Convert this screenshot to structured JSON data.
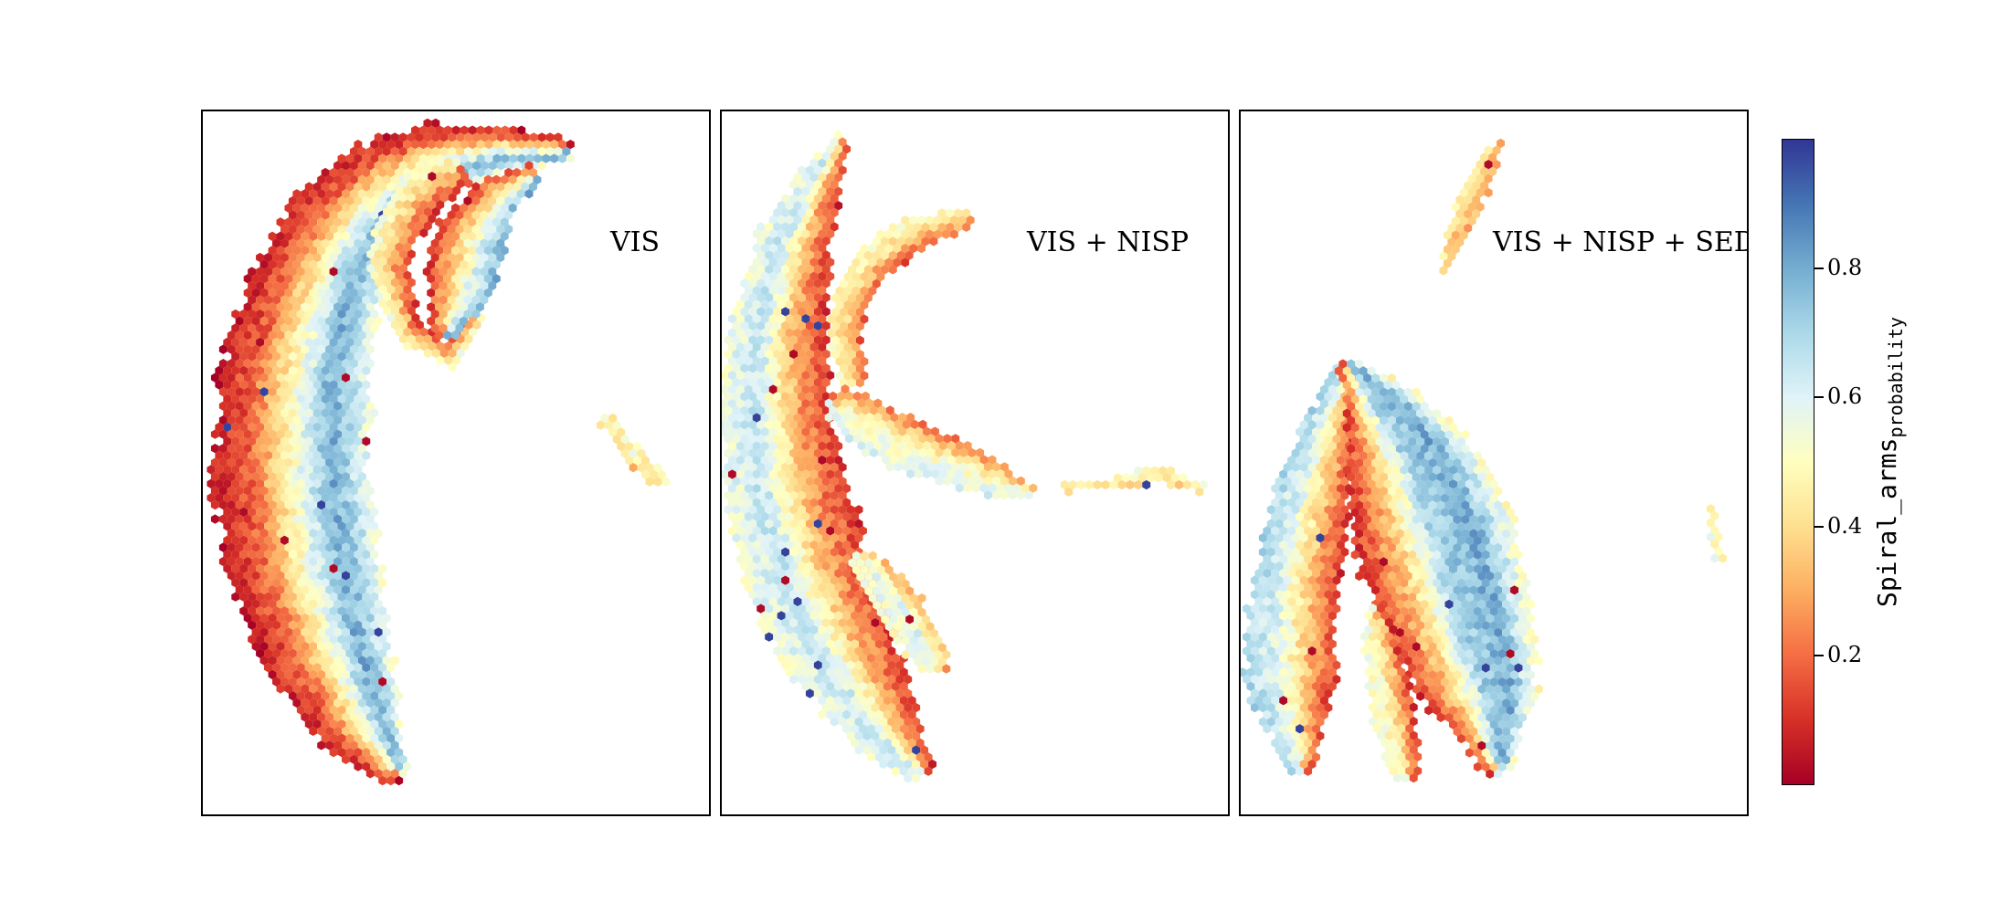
{
  "chart_data": [
    {
      "type": "hexbin",
      "panel_label": "VIS",
      "regions": [
        {
          "name": "main-arc",
          "gradient_outer_to_inner": [
            0.55,
            0.8,
            0.5,
            0.2,
            0.05
          ]
        },
        {
          "name": "upper-hook",
          "gradient_outer_to_inner": [
            0.8,
            0.6,
            0.35,
            0.1
          ]
        },
        {
          "name": "island",
          "mean_value": 0.4
        }
      ]
    },
    {
      "type": "hexbin",
      "panel_label": "VIS + NISP",
      "regions": [
        {
          "name": "left-arc",
          "gradient_outer_to_inner": [
            0.1,
            0.3,
            0.65,
            0.55
          ]
        },
        {
          "name": "upper-branch",
          "gradient_outer_to_inner": [
            0.15,
            0.4,
            0.5
          ]
        },
        {
          "name": "middle-branch",
          "gradient_outer_to_inner": [
            0.2,
            0.5,
            0.6
          ]
        },
        {
          "name": "right-streak",
          "mean_value": 0.45
        }
      ]
    },
    {
      "type": "hexbin",
      "panel_label": "VIS + NISP + SED",
      "regions": [
        {
          "name": "left-leg",
          "gradient_outer_to_inner": [
            0.1,
            0.35,
            0.6,
            0.7
          ]
        },
        {
          "name": "right-leg",
          "gradient_outer_to_inner": [
            0.1,
            0.35,
            0.7,
            0.8,
            0.5
          ]
        },
        {
          "name": "top-island",
          "mean_value": 0.35
        },
        {
          "name": "small-island",
          "mean_value": 0.45
        }
      ]
    }
  ],
  "colorbar": {
    "label_main": "Spiral_arms",
    "label_sub": "probability",
    "colormap": "RdYlBu",
    "range": [
      0.0,
      1.0
    ],
    "ticks": [
      0.2,
      0.4,
      0.6,
      0.8
    ],
    "tick_labels": [
      "0.2",
      "0.4",
      "0.6",
      "0.8"
    ],
    "colors": [
      "#a50026",
      "#d73027",
      "#f46d43",
      "#fdae61",
      "#fee090",
      "#ffffbf",
      "#e0f3f8",
      "#abd9e9",
      "#74add1",
      "#4575b4",
      "#313695"
    ]
  }
}
